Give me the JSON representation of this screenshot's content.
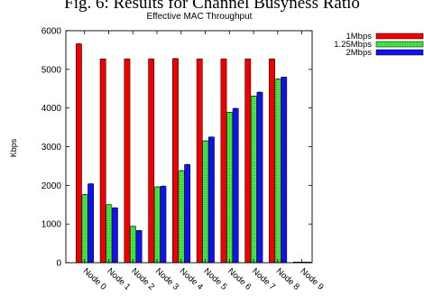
{
  "page_title": "Fig. 6: Results for Channel Busyness Ratio",
  "chart_data": {
    "type": "bar",
    "title": "Effective MAC Throughput",
    "xlabel": "",
    "ylabel": "Kbps",
    "ylim": [
      0,
      6000
    ],
    "yticks": [
      0,
      1000,
      2000,
      3000,
      4000,
      5000,
      6000
    ],
    "grid": false,
    "legend_position": "top-right",
    "categories": [
      "Node 0",
      "Node 1",
      "Node 2",
      "Node 3",
      "Node 4",
      "Node 5",
      "Node 6",
      "Node 7",
      "Node 8",
      "Node 9"
    ],
    "series": [
      {
        "name": "1Mbps",
        "color": "#ee0000",
        "pattern": "solid",
        "values": [
          5660,
          5270,
          5270,
          5270,
          5280,
          5270,
          5270,
          5270,
          5270,
          0
        ]
      },
      {
        "name": "1.25Mbps",
        "color": "#22dd22",
        "pattern": "dotted",
        "values": [
          1760,
          1500,
          940,
          1960,
          2380,
          3150,
          3890,
          4310,
          4750,
          0
        ]
      },
      {
        "name": "2Mbps",
        "color": "#1111ee",
        "pattern": "solid",
        "values": [
          2040,
          1420,
          830,
          1980,
          2540,
          3250,
          3990,
          4410,
          4800,
          0
        ]
      }
    ]
  }
}
